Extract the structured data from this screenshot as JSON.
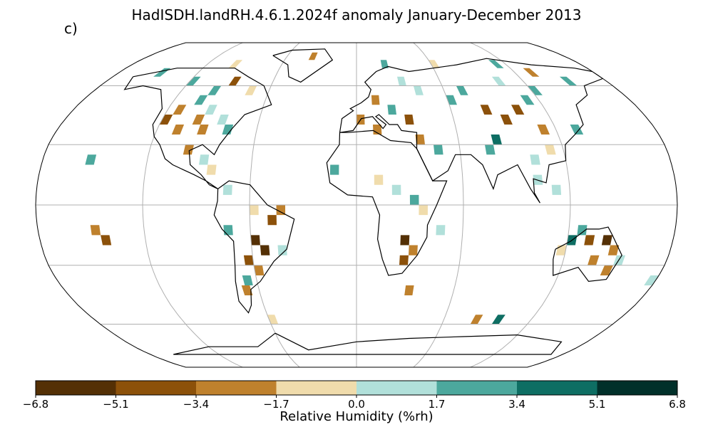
{
  "title": "HadISDH.landRH.4.6.1.2024f anomaly January-December 2013",
  "panel_label": "c)",
  "colorbar": {
    "label": "Relative Humidity (%rh)",
    "ticks": [
      "−6.8",
      "−5.1",
      "−3.4",
      "−1.7",
      "0.0",
      "1.7",
      "3.4",
      "5.1",
      "6.8"
    ],
    "colors": [
      "#543005",
      "#8c510a",
      "#bf812d",
      "#f0dcac",
      "#b1e0da",
      "#4ca89d",
      "#0e6e63",
      "#01302a"
    ],
    "range": [
      -6.8,
      6.8
    ]
  },
  "map": {
    "projection": "robinson",
    "gridlines": true,
    "anomaly_cells": [
      {
        "lat": 40,
        "lon": -120,
        "v": -4
      },
      {
        "lat": 45,
        "lon": -115,
        "v": -3
      },
      {
        "lat": 35,
        "lon": -110,
        "v": -3
      },
      {
        "lat": 40,
        "lon": -100,
        "v": -2
      },
      {
        "lat": 45,
        "lon": -95,
        "v": 1
      },
      {
        "lat": 35,
        "lon": -95,
        "v": -2
      },
      {
        "lat": 40,
        "lon": -85,
        "v": 1
      },
      {
        "lat": 35,
        "lon": -80,
        "v": 2
      },
      {
        "lat": 50,
        "lon": -105,
        "v": 2
      },
      {
        "lat": 55,
        "lon": -100,
        "v": 3
      },
      {
        "lat": 60,
        "lon": -120,
        "v": 2
      },
      {
        "lat": 65,
        "lon": -150,
        "v": 3
      },
      {
        "lat": 55,
        "lon": -75,
        "v": -1
      },
      {
        "lat": 60,
        "lon": -90,
        "v": -4
      },
      {
        "lat": 70,
        "lon": -100,
        "v": -1
      },
      {
        "lat": 25,
        "lon": -100,
        "v": -2
      },
      {
        "lat": 20,
        "lon": -90,
        "v": 1
      },
      {
        "lat": 15,
        "lon": -85,
        "v": -1
      },
      {
        "lat": 5,
        "lon": -75,
        "v": 1
      },
      {
        "lat": -5,
        "lon": -60,
        "v": -1
      },
      {
        "lat": -10,
        "lon": -50,
        "v": -5
      },
      {
        "lat": -5,
        "lon": -45,
        "v": -3
      },
      {
        "lat": -20,
        "lon": -60,
        "v": -6
      },
      {
        "lat": -25,
        "lon": -55,
        "v": -6
      },
      {
        "lat": -30,
        "lon": -65,
        "v": -4
      },
      {
        "lat": -25,
        "lon": -45,
        "v": 1
      },
      {
        "lat": -35,
        "lon": -60,
        "v": -3
      },
      {
        "lat": -40,
        "lon": -68,
        "v": 2
      },
      {
        "lat": -45,
        "lon": -70,
        "v": -2
      },
      {
        "lat": -15,
        "lon": -75,
        "v": 2
      },
      {
        "lat": 60,
        "lon": 30,
        "v": 1
      },
      {
        "lat": 55,
        "lon": 40,
        "v": 1
      },
      {
        "lat": 50,
        "lon": 10,
        "v": -2
      },
      {
        "lat": 45,
        "lon": 20,
        "v": 2
      },
      {
        "lat": 40,
        "lon": 0,
        "v": -3
      },
      {
        "lat": 35,
        "lon": 10,
        "v": -3
      },
      {
        "lat": 40,
        "lon": 30,
        "v": -4
      },
      {
        "lat": 30,
        "lon": 35,
        "v": -2
      },
      {
        "lat": 25,
        "lon": 45,
        "v": 2
      },
      {
        "lat": 50,
        "lon": 60,
        "v": 2
      },
      {
        "lat": 55,
        "lon": 70,
        "v": 3
      },
      {
        "lat": 45,
        "lon": 80,
        "v": -4
      },
      {
        "lat": 40,
        "lon": 90,
        "v": -5
      },
      {
        "lat": 45,
        "lon": 100,
        "v": -4
      },
      {
        "lat": 50,
        "lon": 110,
        "v": 3
      },
      {
        "lat": 55,
        "lon": 120,
        "v": 2
      },
      {
        "lat": 35,
        "lon": 110,
        "v": -2
      },
      {
        "lat": 30,
        "lon": 80,
        "v": 4
      },
      {
        "lat": 25,
        "lon": 75,
        "v": 3
      },
      {
        "lat": 25,
        "lon": 110,
        "v": -1
      },
      {
        "lat": 20,
        "lon": 100,
        "v": 1
      },
      {
        "lat": 35,
        "lon": 130,
        "v": 2
      },
      {
        "lat": 10,
        "lon": 100,
        "v": 1
      },
      {
        "lat": 5,
        "lon": 110,
        "v": 1
      },
      {
        "lat": 60,
        "lon": 100,
        "v": 1
      },
      {
        "lat": 65,
        "lon": 130,
        "v": -2
      },
      {
        "lat": 60,
        "lon": 150,
        "v": 2
      },
      {
        "lat": 10,
        "lon": 10,
        "v": -1
      },
      {
        "lat": 5,
        "lon": 20,
        "v": 1
      },
      {
        "lat": 0,
        "lon": 30,
        "v": 2
      },
      {
        "lat": -5,
        "lon": 35,
        "v": -1
      },
      {
        "lat": -20,
        "lon": 25,
        "v": -6
      },
      {
        "lat": -25,
        "lon": 30,
        "v": -3
      },
      {
        "lat": -30,
        "lon": 25,
        "v": -5
      },
      {
        "lat": -15,
        "lon": 45,
        "v": 1
      },
      {
        "lat": 15,
        "lon": -15,
        "v": 2
      },
      {
        "lat": -15,
        "lon": 125,
        "v": 2
      },
      {
        "lat": -20,
        "lon": 120,
        "v": 5
      },
      {
        "lat": -20,
        "lon": 130,
        "v": -5
      },
      {
        "lat": -20,
        "lon": 140,
        "v": -6
      },
      {
        "lat": -25,
        "lon": 145,
        "v": -2
      },
      {
        "lat": -30,
        "lon": 135,
        "v": -3
      },
      {
        "lat": -35,
        "lon": 145,
        "v": -2
      },
      {
        "lat": -25,
        "lon": 115,
        "v": -1
      },
      {
        "lat": -30,
        "lon": 150,
        "v": 1
      },
      {
        "lat": -40,
        "lon": 175,
        "v": 1
      },
      {
        "lat": -15,
        "lon": -150,
        "v": -3
      },
      {
        "lat": -20,
        "lon": -145,
        "v": -5
      },
      {
        "lat": 20,
        "lon": -155,
        "v": 2
      },
      {
        "lat": -45,
        "lon": 30,
        "v": -2
      },
      {
        "lat": -60,
        "lon": -60,
        "v": -1
      },
      {
        "lat": -60,
        "lon": 80,
        "v": -3
      },
      {
        "lat": -60,
        "lon": 95,
        "v": 5
      },
      {
        "lat": 75,
        "lon": -40,
        "v": -2
      },
      {
        "lat": 70,
        "lon": 20,
        "v": 2
      },
      {
        "lat": 70,
        "lon": 60,
        "v": -1
      },
      {
        "lat": 70,
        "lon": 110,
        "v": 2
      }
    ]
  }
}
